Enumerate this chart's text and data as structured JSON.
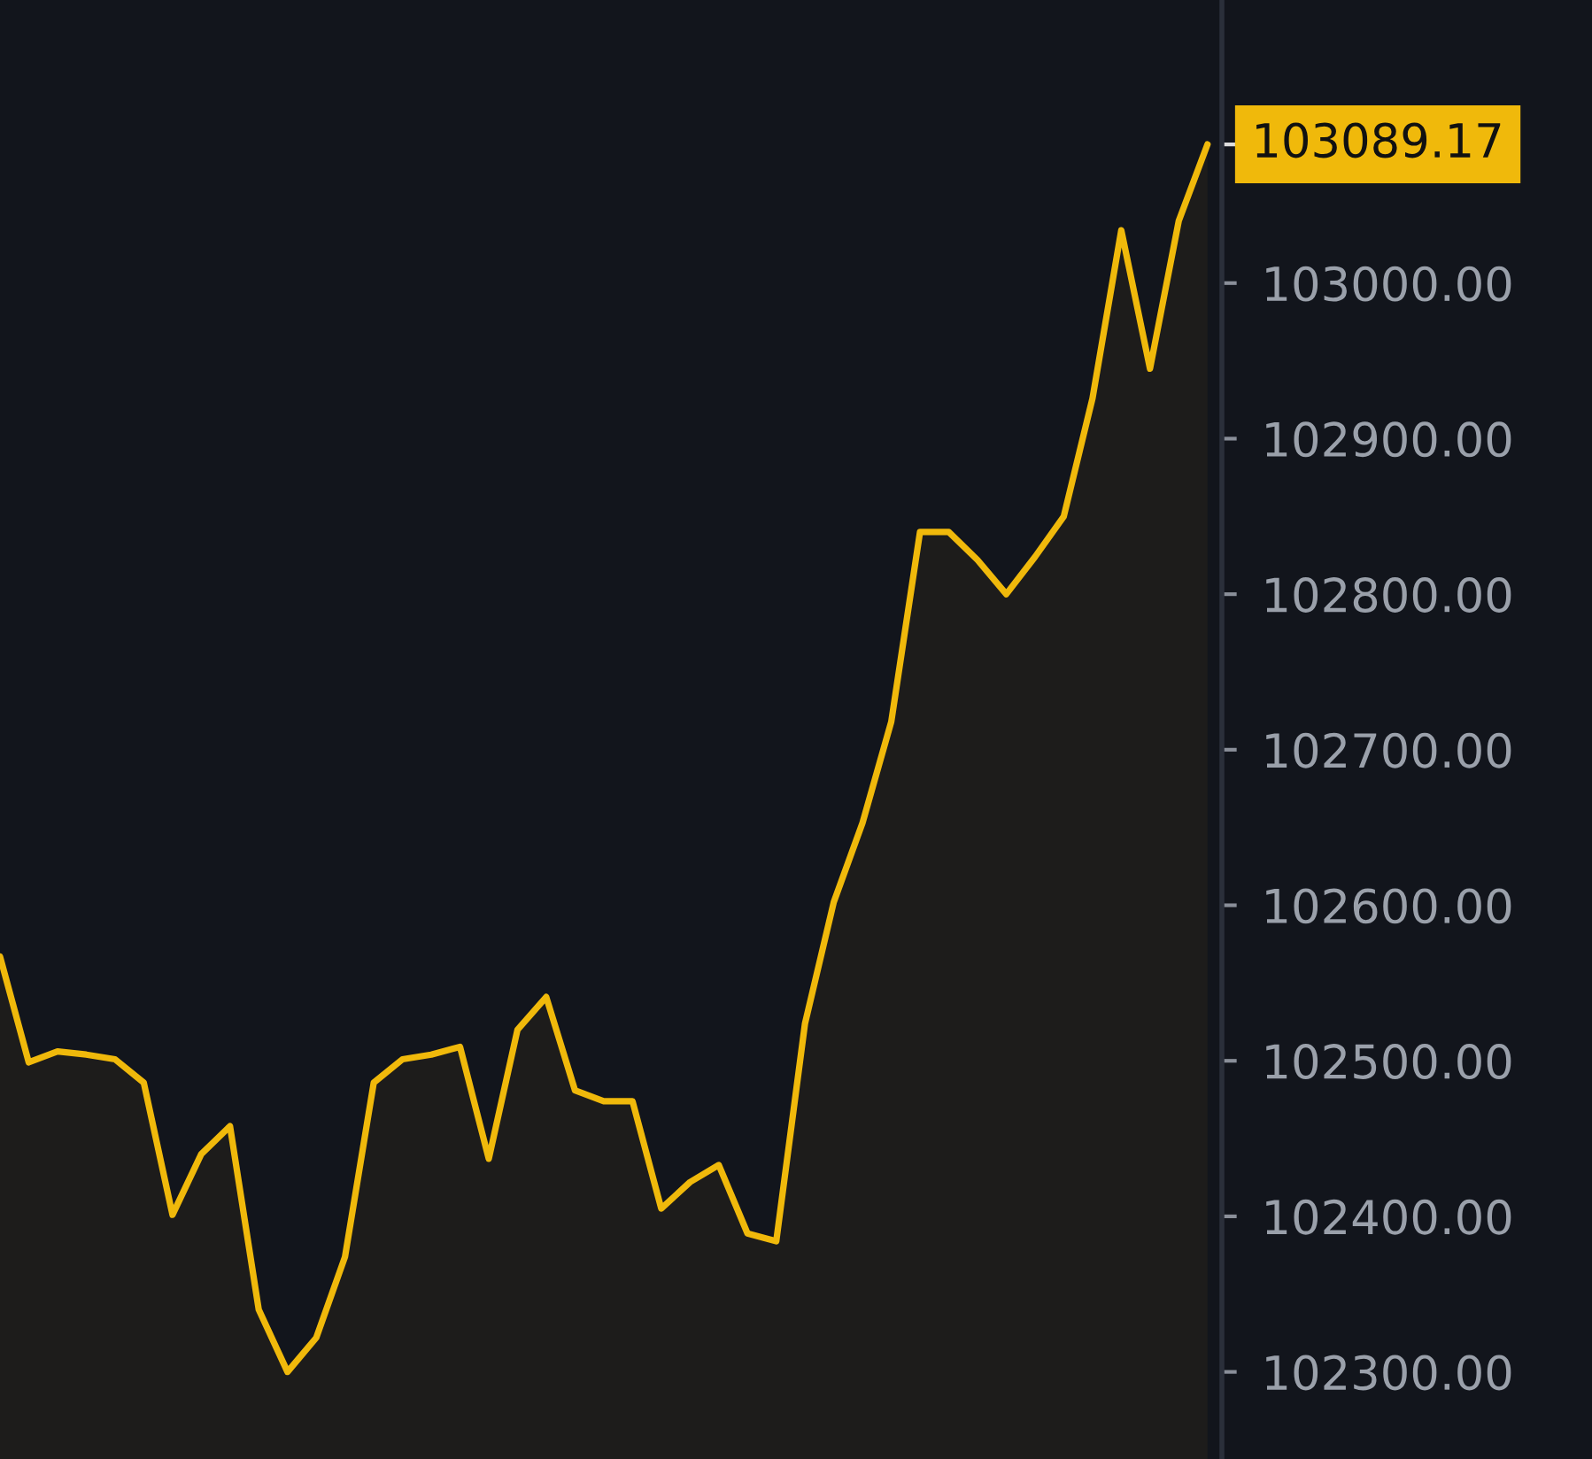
{
  "chart_data": {
    "type": "area",
    "categories": [
      null,
      null,
      null,
      null,
      null,
      null,
      null,
      null,
      null,
      null,
      null,
      null,
      null,
      null,
      null,
      null,
      null,
      null,
      null,
      null,
      null,
      null,
      null,
      null,
      null,
      null,
      null,
      null,
      null,
      null,
      null,
      null,
      null,
      null,
      null,
      null,
      null,
      null,
      null,
      null,
      null,
      null,
      null
    ],
    "series": [
      {
        "color": "#f0b90b",
        "values": [
          102567,
          102499,
          102506,
          102504,
          102501,
          102486,
          102401,
          102440,
          102458,
          102340,
          102300,
          102322,
          102374,
          102486,
          102501,
          102504,
          102509,
          102437,
          102520,
          102541,
          102481,
          102474,
          102474,
          102405,
          102422,
          102433,
          102389,
          102384,
          102524,
          102602,
          102653,
          102718,
          102840,
          102840,
          102822,
          102800,
          102824,
          102850,
          102926,
          103034,
          102945,
          103040,
          103089.17
        ]
      }
    ],
    "ylim": [
      102244,
      103182
    ],
    "yticks": [
      {
        "value": 102300,
        "label": "102300.00"
      },
      {
        "value": 102400,
        "label": "102400.00"
      },
      {
        "value": 102500,
        "label": "102500.00"
      },
      {
        "value": 102600,
        "label": "102600.00"
      },
      {
        "value": 102700,
        "label": "102700.00"
      },
      {
        "value": 102800,
        "label": "102800.00"
      },
      {
        "value": 102900,
        "label": "102900.00"
      },
      {
        "value": 103000,
        "label": "103000.00"
      }
    ],
    "tick_labels": "y",
    "grid": false,
    "legend": false,
    "annotations": [
      "103089.17"
    ]
  }
}
